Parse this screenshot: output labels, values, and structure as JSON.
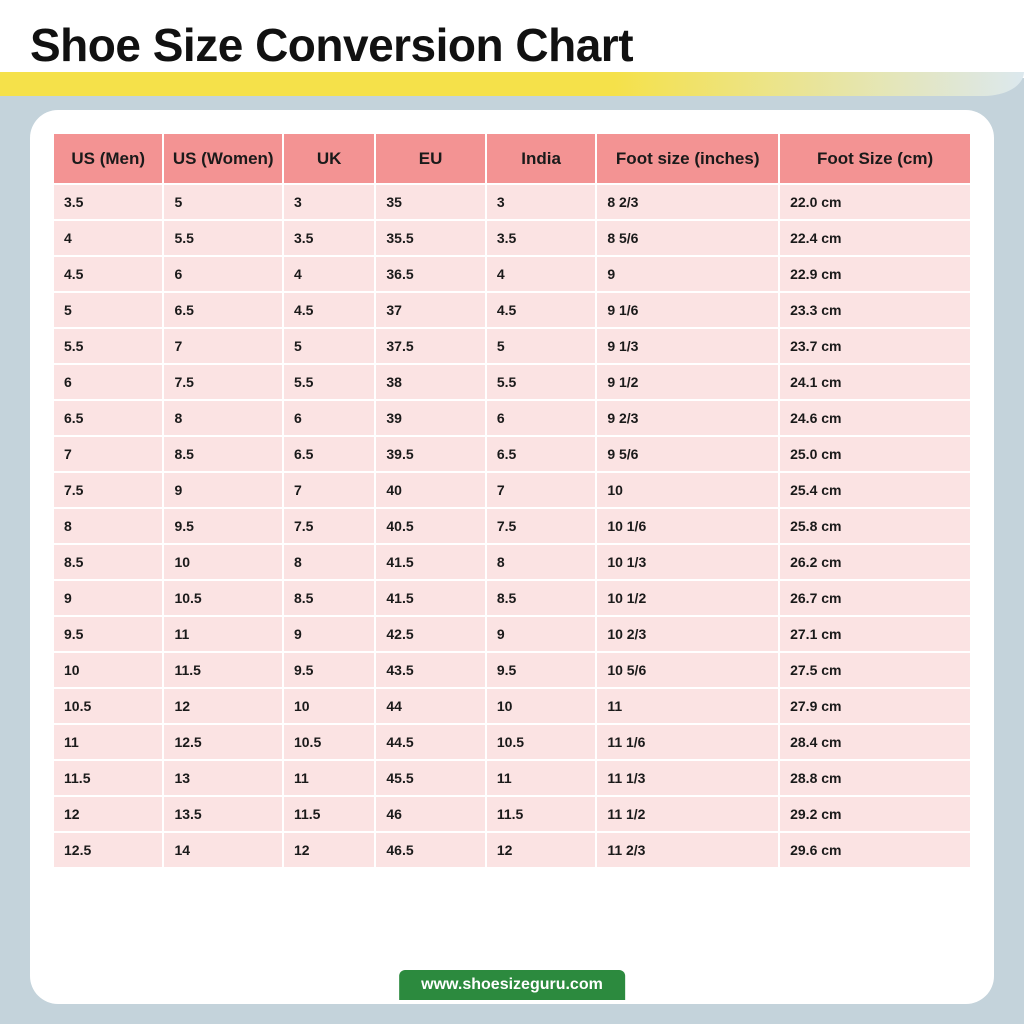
{
  "title": "Shoe Size Conversion Chart",
  "footer": "www.shoesizeguru.com",
  "table": {
    "type": "table",
    "header_bg": "#f39393",
    "row_bg": "#fbe3e3",
    "text_color": "#1a1a1a",
    "header_fontsize": 17,
    "cell_fontsize": 14,
    "columns": [
      "US (Men)",
      "US (Women)",
      "UK",
      "EU",
      "India",
      "Foot size (inches)",
      "Foot Size (cm)"
    ],
    "rows": [
      [
        "3.5",
        "5",
        "3",
        "35",
        "3",
        "8 2/3",
        "22.0 cm"
      ],
      [
        "4",
        "5.5",
        "3.5",
        "35.5",
        "3.5",
        "8 5/6",
        "22.4 cm"
      ],
      [
        "4.5",
        "6",
        "4",
        "36.5",
        "4",
        "9",
        "22.9 cm"
      ],
      [
        "5",
        "6.5",
        "4.5",
        "37",
        "4.5",
        "9 1/6",
        "23.3 cm"
      ],
      [
        "5.5",
        "7",
        "5",
        "37.5",
        "5",
        "9 1/3",
        "23.7 cm"
      ],
      [
        "6",
        "7.5",
        "5.5",
        "38",
        "5.5",
        "9 1/2",
        "24.1 cm"
      ],
      [
        "6.5",
        "8",
        "6",
        "39",
        "6",
        "9 2/3",
        "24.6 cm"
      ],
      [
        "7",
        "8.5",
        "6.5",
        "39.5",
        "6.5",
        "9 5/6",
        "25.0 cm"
      ],
      [
        "7.5",
        "9",
        "7",
        "40",
        "7",
        "10",
        "25.4 cm"
      ],
      [
        "8",
        "9.5",
        "7.5",
        "40.5",
        "7.5",
        "10 1/6",
        "25.8 cm"
      ],
      [
        "8.5",
        "10",
        "8",
        "41.5",
        "8",
        "10 1/3",
        "26.2 cm"
      ],
      [
        "9",
        "10.5",
        "8.5",
        "41.5",
        "8.5",
        "10 1/2",
        "26.7 cm"
      ],
      [
        "9.5",
        "11",
        "9",
        "42.5",
        "9",
        "10 2/3",
        "27.1 cm"
      ],
      [
        "10",
        "11.5",
        "9.5",
        "43.5",
        "9.5",
        "10 5/6",
        "27.5 cm"
      ],
      [
        "10.5",
        "12",
        "10",
        "44",
        "10",
        "11",
        "27.9 cm"
      ],
      [
        "11",
        "12.5",
        "10.5",
        "44.5",
        "10.5",
        "11 1/6",
        "28.4 cm"
      ],
      [
        "11.5",
        "13",
        "11",
        "45.5",
        "11",
        "11 1/3",
        "28.8 cm"
      ],
      [
        "12",
        "13.5",
        "11.5",
        "46",
        "11.5",
        "11 1/2",
        "29.2 cm"
      ],
      [
        "12.5",
        "14",
        "12",
        "46.5",
        "12",
        "11 2/3",
        "29.6 cm"
      ]
    ]
  },
  "colors": {
    "page_bg": "#c4d3db",
    "card_bg": "#ffffff",
    "accent_yellow": "#f5e14a",
    "footer_bg": "#2c8a3e",
    "footer_text": "#ffffff"
  }
}
